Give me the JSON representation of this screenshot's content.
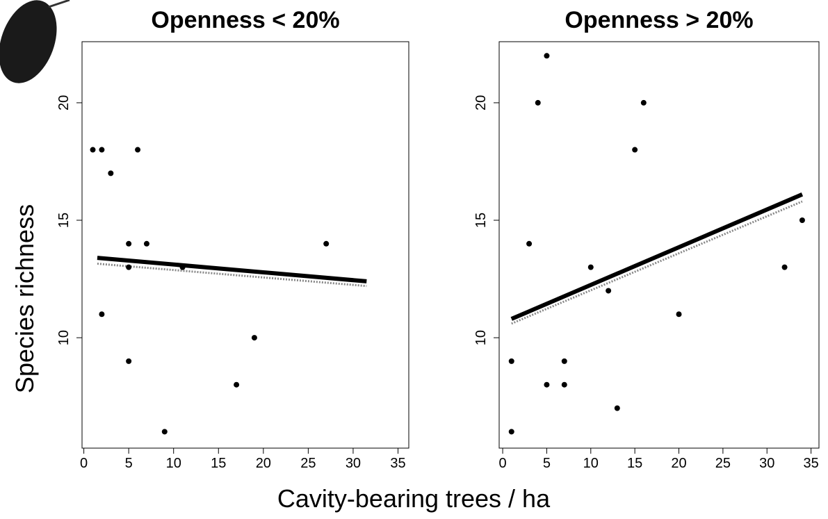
{
  "axis_labels": {
    "x": "Cavity-bearing trees / ha",
    "y": "Species richness"
  },
  "chart_data": [
    {
      "type": "scatter",
      "title": "Openness < 20%",
      "x": [
        1,
        2,
        3,
        6,
        2,
        5,
        5,
        5,
        7,
        9,
        11,
        17,
        19,
        27
      ],
      "values": [
        18,
        18,
        17,
        18,
        11,
        14,
        13,
        9,
        14,
        6,
        13,
        8,
        10,
        14
      ],
      "color": "#000000",
      "fit": {
        "x": [
          1.5,
          31.5
        ],
        "values": [
          13.4,
          12.4
        ],
        "color": "#000000"
      },
      "fit_band": {
        "x": [
          1.5,
          31.5
        ],
        "values": [
          13.15,
          12.2
        ],
        "color": "#888888"
      },
      "xlim": [
        -0.2,
        36.2
      ],
      "ylim": [
        5.3,
        22.6
      ],
      "xticks": [
        0,
        5,
        10,
        15,
        20,
        25,
        30,
        35
      ],
      "yticks": [
        10,
        15,
        20
      ]
    },
    {
      "type": "scatter",
      "title": "Openness > 20%",
      "x": [
        1,
        1,
        3,
        4,
        5,
        5,
        7,
        7,
        10,
        12,
        13,
        15,
        16,
        20,
        32,
        34
      ],
      "values": [
        9,
        6,
        14,
        20,
        22,
        8,
        9,
        8,
        13,
        12,
        7,
        18,
        20,
        11,
        13,
        15
      ],
      "color": "#000000",
      "fit": {
        "x": [
          1,
          34
        ],
        "values": [
          10.8,
          16.1
        ],
        "color": "#000000"
      },
      "fit_band": {
        "x": [
          1,
          34
        ],
        "values": [
          10.6,
          15.8
        ],
        "color": "#888888"
      },
      "xlim": [
        -0.4,
        35.9
      ],
      "ylim": [
        5.3,
        22.6
      ],
      "xticks": [
        0,
        5,
        10,
        15,
        20,
        25,
        30,
        35
      ],
      "yticks": [
        10,
        15,
        20
      ]
    }
  ]
}
